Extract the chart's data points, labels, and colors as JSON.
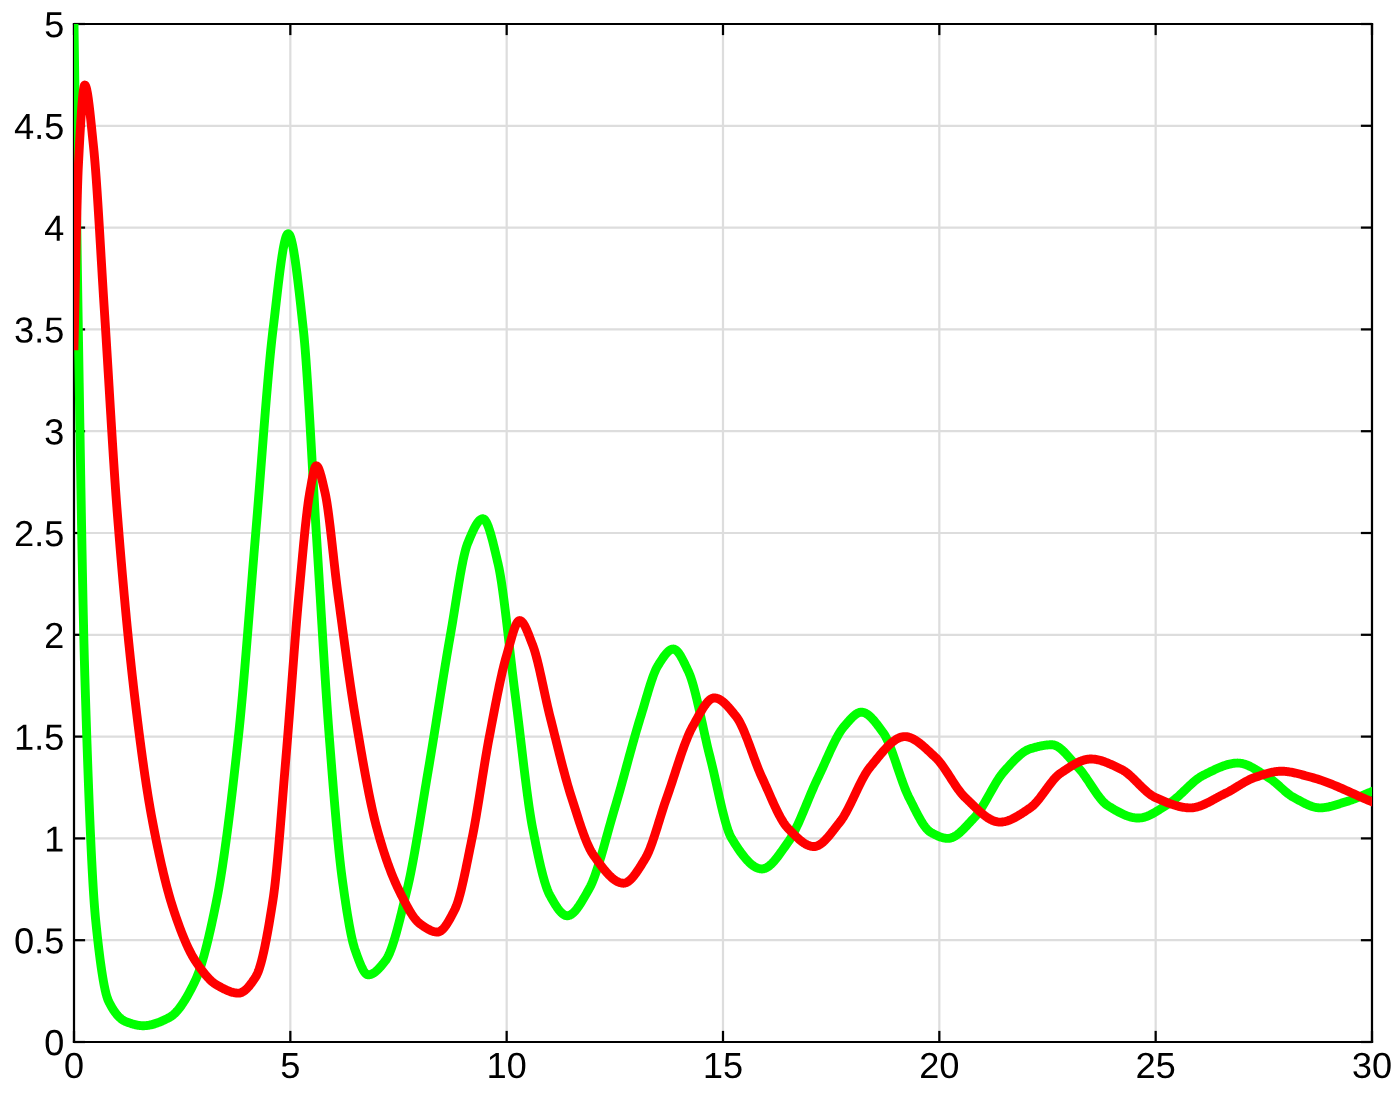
{
  "chart_data": {
    "type": "line",
    "xlim": [
      0,
      30
    ],
    "ylim": [
      0,
      5
    ],
    "xticks": [
      0,
      5,
      10,
      15,
      20,
      25,
      30
    ],
    "yticks": [
      0,
      0.5,
      1,
      1.5,
      2,
      2.5,
      3,
      3.5,
      4,
      4.5,
      5
    ],
    "grid": true,
    "line_style": "solid",
    "marker": "none",
    "legend": false,
    "series": [
      {
        "color": "#00ff00",
        "x": [
          0,
          0.1,
          0.25,
          0.5,
          0.8,
          1.2,
          1.6,
          2.2,
          2.8,
          3.3,
          3.8,
          4.2,
          4.6,
          4.95,
          5.3,
          5.6,
          5.9,
          6.2,
          6.5,
          6.8,
          7.2,
          7.7,
          8.2,
          8.7,
          9.1,
          9.45,
          9.8,
          10.2,
          10.6,
          11.0,
          11.4,
          11.9,
          12.5,
          13.1,
          13.5,
          13.85,
          14.2,
          14.7,
          15.2,
          15.9,
          16.5,
          17.2,
          17.8,
          18.2,
          18.7,
          19.3,
          19.8,
          20.2,
          20.8,
          21.5,
          22.1,
          22.6,
          23.2,
          23.9,
          24.6,
          25.3,
          26.1,
          26.9,
          27.6,
          28.2,
          28.8,
          29.4,
          30
        ],
        "values": [
          5,
          3.5,
          1.8,
          0.6,
          0.2,
          0.1,
          0.08,
          0.12,
          0.3,
          0.7,
          1.5,
          2.5,
          3.5,
          3.97,
          3.5,
          2.5,
          1.5,
          0.8,
          0.45,
          0.33,
          0.4,
          0.75,
          1.35,
          2.0,
          2.45,
          2.57,
          2.35,
          1.7,
          1.05,
          0.72,
          0.62,
          0.75,
          1.15,
          1.6,
          1.85,
          1.93,
          1.82,
          1.4,
          1.0,
          0.85,
          0.98,
          1.3,
          1.55,
          1.62,
          1.52,
          1.2,
          1.03,
          1.0,
          1.1,
          1.33,
          1.44,
          1.46,
          1.35,
          1.16,
          1.1,
          1.17,
          1.31,
          1.37,
          1.3,
          1.2,
          1.15,
          1.18,
          1.23
        ]
      },
      {
        "color": "#ff0000",
        "x": [
          0,
          0.1,
          0.25,
          0.45,
          0.7,
          1.0,
          1.4,
          1.8,
          2.3,
          2.8,
          3.3,
          3.8,
          4.2,
          4.6,
          4.9,
          5.2,
          5.45,
          5.6,
          5.8,
          6.1,
          6.5,
          7.0,
          7.5,
          8.0,
          8.4,
          8.8,
          9.2,
          9.6,
          10.0,
          10.3,
          10.6,
          11.0,
          11.5,
          12.0,
          12.7,
          13.2,
          13.7,
          14.3,
          14.8,
          15.3,
          15.9,
          16.5,
          17.1,
          17.7,
          18.4,
          19.2,
          19.9,
          20.6,
          21.4,
          22.1,
          22.8,
          23.5,
          24.2,
          25.0,
          25.8,
          26.6,
          27.3,
          27.9,
          28.6,
          30
        ],
        "values": [
          3.42,
          4.3,
          4.7,
          4.4,
          3.6,
          2.6,
          1.7,
          1.1,
          0.65,
          0.4,
          0.28,
          0.24,
          0.32,
          0.7,
          1.4,
          2.2,
          2.7,
          2.83,
          2.7,
          2.2,
          1.6,
          1.05,
          0.75,
          0.58,
          0.54,
          0.65,
          1.0,
          1.5,
          1.9,
          2.07,
          1.95,
          1.6,
          1.2,
          0.92,
          0.78,
          0.9,
          1.2,
          1.55,
          1.69,
          1.6,
          1.3,
          1.05,
          0.96,
          1.08,
          1.35,
          1.5,
          1.4,
          1.2,
          1.08,
          1.15,
          1.32,
          1.39,
          1.34,
          1.2,
          1.15,
          1.22,
          1.3,
          1.33,
          1.3,
          1.18
        ]
      }
    ]
  }
}
